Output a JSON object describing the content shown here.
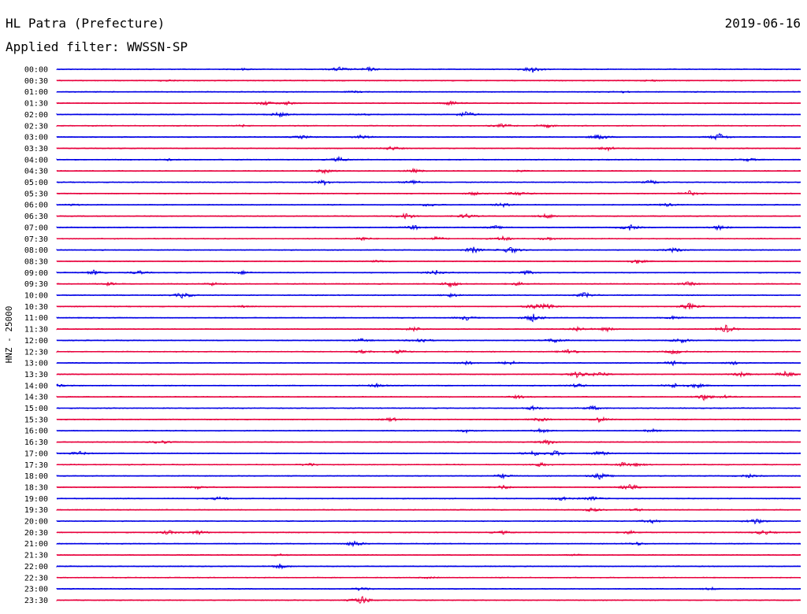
{
  "header": {
    "station": "HL Patra (Prefecture)",
    "date": "2019-06-16",
    "filter": "Applied filter: WWSSN-SP"
  },
  "chart_data": {
    "type": "line",
    "title": "HL Patra (Prefecture)",
    "ylabel": "HNZ - 25000",
    "xlabel": "",
    "colors": [
      "#0000e6",
      "#e8003c"
    ],
    "rows": [
      {
        "time": "00:00",
        "events": [
          [
            0.38,
            3
          ],
          [
            0.42,
            2.5
          ],
          [
            0.64,
            4
          ],
          [
            0.25,
            1
          ]
        ]
      },
      {
        "time": "00:30",
        "events": [
          [
            0.15,
            1
          ],
          [
            0.8,
            1
          ]
        ]
      },
      {
        "time": "01:00",
        "events": [
          [
            0.4,
            1
          ],
          [
            0.76,
            1
          ]
        ]
      },
      {
        "time": "01:30",
        "events": [
          [
            0.28,
            2.5
          ],
          [
            0.31,
            2
          ],
          [
            0.53,
            3
          ]
        ]
      },
      {
        "time": "02:00",
        "events": [
          [
            0.3,
            3
          ],
          [
            0.55,
            4
          ],
          [
            0.41,
            1
          ]
        ]
      },
      {
        "time": "02:30",
        "events": [
          [
            0.25,
            1
          ],
          [
            0.6,
            2.5
          ],
          [
            0.66,
            2
          ]
        ]
      },
      {
        "time": "03:00",
        "events": [
          [
            0.33,
            2
          ],
          [
            0.41,
            2.5
          ],
          [
            0.73,
            4
          ],
          [
            0.89,
            5
          ]
        ]
      },
      {
        "time": "03:30",
        "events": [
          [
            0.45,
            2.5
          ],
          [
            0.74,
            3
          ]
        ]
      },
      {
        "time": "04:00",
        "events": [
          [
            0.15,
            1
          ],
          [
            0.38,
            3
          ],
          [
            0.93,
            2
          ]
        ]
      },
      {
        "time": "04:30",
        "events": [
          [
            0.36,
            3
          ],
          [
            0.48,
            2.5
          ],
          [
            0.62,
            1
          ]
        ]
      },
      {
        "time": "05:00",
        "events": [
          [
            0.36,
            3
          ],
          [
            0.48,
            3
          ],
          [
            0.8,
            2.5
          ]
        ]
      },
      {
        "time": "05:30",
        "events": [
          [
            0.56,
            2
          ],
          [
            0.62,
            3
          ],
          [
            0.85,
            3.5
          ]
        ]
      },
      {
        "time": "06:00",
        "events": [
          [
            0.02,
            1
          ],
          [
            0.5,
            2
          ],
          [
            0.6,
            2.5
          ],
          [
            0.82,
            2
          ]
        ]
      },
      {
        "time": "06:30",
        "events": [
          [
            0.47,
            4
          ],
          [
            0.55,
            3
          ],
          [
            0.66,
            3
          ]
        ]
      },
      {
        "time": "07:00",
        "events": [
          [
            0.48,
            3
          ],
          [
            0.59,
            2
          ],
          [
            0.77,
            4
          ],
          [
            0.89,
            3
          ]
        ]
      },
      {
        "time": "07:30",
        "events": [
          [
            0.41,
            2.5
          ],
          [
            0.51,
            2.5
          ],
          [
            0.6,
            3
          ],
          [
            0.66,
            2
          ]
        ]
      },
      {
        "time": "08:00",
        "events": [
          [
            0.56,
            4
          ],
          [
            0.61,
            5
          ],
          [
            0.83,
            3
          ]
        ]
      },
      {
        "time": "08:30",
        "events": [
          [
            0.43,
            1
          ],
          [
            0.78,
            3
          ]
        ]
      },
      {
        "time": "09:00",
        "events": [
          [
            0.05,
            3
          ],
          [
            0.11,
            2.5
          ],
          [
            0.25,
            2
          ],
          [
            0.51,
            3
          ],
          [
            0.63,
            3
          ]
        ]
      },
      {
        "time": "09:30",
        "events": [
          [
            0.07,
            2
          ],
          [
            0.21,
            2
          ],
          [
            0.53,
            4
          ],
          [
            0.62,
            2
          ],
          [
            0.85,
            2.5
          ]
        ]
      },
      {
        "time": "10:00",
        "events": [
          [
            0.17,
            4
          ],
          [
            0.53,
            2.5
          ],
          [
            0.71,
            3.5
          ]
        ]
      },
      {
        "time": "10:30",
        "events": [
          [
            0.25,
            1
          ],
          [
            0.64,
            3
          ],
          [
            0.66,
            4
          ],
          [
            0.85,
            4
          ]
        ]
      },
      {
        "time": "11:00",
        "events": [
          [
            0.55,
            3
          ],
          [
            0.64,
            5
          ],
          [
            0.83,
            2.5
          ]
        ]
      },
      {
        "time": "11:30",
        "events": [
          [
            0.48,
            3
          ],
          [
            0.7,
            3
          ],
          [
            0.74,
            2.5
          ],
          [
            0.9,
            5
          ]
        ]
      },
      {
        "time": "12:00",
        "events": [
          [
            0.41,
            2
          ],
          [
            0.49,
            3.5
          ],
          [
            0.67,
            3
          ],
          [
            0.84,
            3
          ]
        ]
      },
      {
        "time": "12:30",
        "events": [
          [
            0.41,
            2
          ],
          [
            0.46,
            2.5
          ],
          [
            0.69,
            4
          ],
          [
            0.83,
            3
          ]
        ]
      },
      {
        "time": "13:00",
        "events": [
          [
            0.55,
            2.5
          ],
          [
            0.61,
            3
          ],
          [
            0.83,
            3
          ],
          [
            0.91,
            2
          ]
        ]
      },
      {
        "time": "13:30",
        "events": [
          [
            0.7,
            4
          ],
          [
            0.73,
            3.5
          ],
          [
            0.92,
            3
          ],
          [
            0.98,
            4
          ]
        ]
      },
      {
        "time": "14:00",
        "events": [
          [
            0.0,
            2
          ],
          [
            0.43,
            2.5
          ],
          [
            0.7,
            2.5
          ],
          [
            0.83,
            3
          ],
          [
            0.86,
            3
          ]
        ]
      },
      {
        "time": "14:30",
        "events": [
          [
            0.62,
            2
          ],
          [
            0.87,
            4
          ],
          [
            0.9,
            2
          ]
        ]
      },
      {
        "time": "15:00",
        "events": [
          [
            0.64,
            2.5
          ],
          [
            0.72,
            3
          ]
        ]
      },
      {
        "time": "15:30",
        "events": [
          [
            0.45,
            2.5
          ],
          [
            0.65,
            2.5
          ],
          [
            0.73,
            3.5
          ]
        ]
      },
      {
        "time": "16:00",
        "events": [
          [
            0.55,
            2
          ],
          [
            0.65,
            3
          ],
          [
            0.8,
            2
          ]
        ]
      },
      {
        "time": "16:30",
        "events": [
          [
            0.14,
            2.5
          ],
          [
            0.66,
            3
          ]
        ]
      },
      {
        "time": "17:00",
        "events": [
          [
            0.03,
            2.5
          ],
          [
            0.64,
            3.5
          ],
          [
            0.67,
            3.5
          ],
          [
            0.73,
            3
          ]
        ]
      },
      {
        "time": "17:30",
        "events": [
          [
            0.34,
            2
          ],
          [
            0.65,
            2.5
          ],
          [
            0.76,
            2.5
          ],
          [
            0.78,
            2
          ]
        ]
      },
      {
        "time": "18:00",
        "events": [
          [
            0.6,
            2.5
          ],
          [
            0.73,
            4
          ],
          [
            0.93,
            2
          ]
        ]
      },
      {
        "time": "18:30",
        "events": [
          [
            0.19,
            2
          ],
          [
            0.6,
            2.5
          ],
          [
            0.77,
            5
          ]
        ]
      },
      {
        "time": "19:00",
        "events": [
          [
            0.22,
            2.5
          ],
          [
            0.68,
            3
          ],
          [
            0.72,
            2.5
          ]
        ]
      },
      {
        "time": "19:30",
        "events": [
          [
            0.72,
            2.5
          ],
          [
            0.78,
            1.5
          ]
        ]
      },
      {
        "time": "20:00",
        "events": [
          [
            0.8,
            2.5
          ],
          [
            0.94,
            4
          ]
        ]
      },
      {
        "time": "20:30",
        "events": [
          [
            0.15,
            2.5
          ],
          [
            0.19,
            3
          ],
          [
            0.6,
            2
          ],
          [
            0.77,
            2
          ],
          [
            0.95,
            3
          ]
        ]
      },
      {
        "time": "21:00",
        "events": [
          [
            0.4,
            4
          ],
          [
            0.78,
            2
          ]
        ]
      },
      {
        "time": "21:30",
        "events": [
          [
            0.3,
            1
          ],
          [
            0.7,
            1
          ]
        ]
      },
      {
        "time": "22:00",
        "events": [
          [
            0.3,
            3
          ]
        ]
      },
      {
        "time": "22:30",
        "events": [
          [
            0.5,
            1
          ]
        ]
      },
      {
        "time": "23:00",
        "events": [
          [
            0.41,
            2.5
          ],
          [
            0.88,
            1.5
          ]
        ]
      },
      {
        "time": "23:30",
        "events": [
          [
            0.41,
            6
          ]
        ]
      }
    ]
  }
}
